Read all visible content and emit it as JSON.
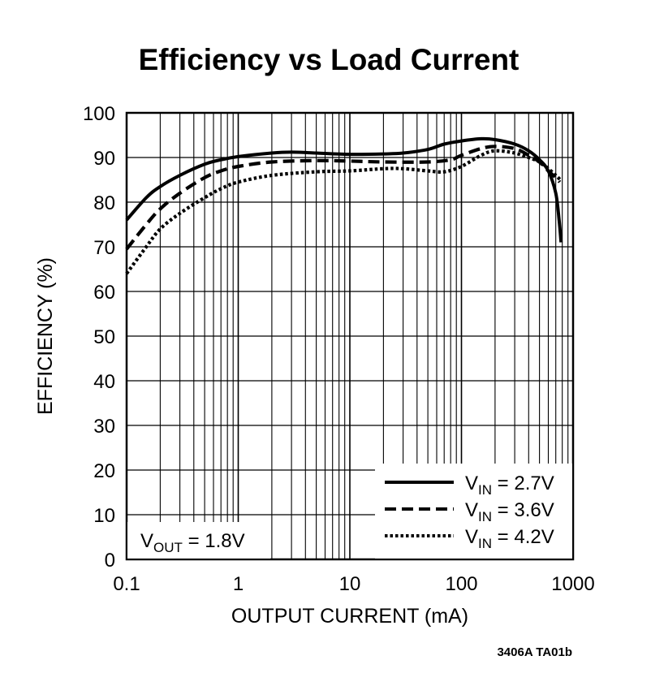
{
  "chart_data": {
    "type": "line",
    "title": "Efficiency vs Load Current",
    "xlabel": "OUTPUT CURRENT (mA)",
    "ylabel": "EFFICIENCY (%)",
    "xscale": "log",
    "xlim": [
      0.1,
      1000
    ],
    "ylim": [
      0,
      100
    ],
    "grid": true,
    "x_ticks": [
      {
        "value": 0.1,
        "label": "0.1"
      },
      {
        "value": 1,
        "label": "1"
      },
      {
        "value": 10,
        "label": "10"
      },
      {
        "value": 100,
        "label": "100"
      },
      {
        "value": 1000,
        "label": "1000"
      }
    ],
    "y_ticks": [
      {
        "value": 0,
        "label": "0"
      },
      {
        "value": 10,
        "label": "10"
      },
      {
        "value": 20,
        "label": "20"
      },
      {
        "value": 30,
        "label": "30"
      },
      {
        "value": 40,
        "label": "40"
      },
      {
        "value": 50,
        "label": "50"
      },
      {
        "value": 60,
        "label": "60"
      },
      {
        "value": 70,
        "label": "70"
      },
      {
        "value": 80,
        "label": "80"
      },
      {
        "value": 90,
        "label": "90"
      },
      {
        "value": 100,
        "label": "100"
      }
    ],
    "legend_position": "bottom-right",
    "series": [
      {
        "name": "VIN = 2.7V",
        "label_main": "V",
        "label_sub": "IN",
        "label_rest": " = 2.7V",
        "style": "solid",
        "points": [
          [
            0.1,
            76
          ],
          [
            0.15,
            81
          ],
          [
            0.2,
            83.5
          ],
          [
            0.3,
            86
          ],
          [
            0.5,
            88.5
          ],
          [
            0.7,
            89.5
          ],
          [
            1,
            90.2
          ],
          [
            2,
            91
          ],
          [
            3,
            91.2
          ],
          [
            5,
            91
          ],
          [
            10,
            90.7
          ],
          [
            20,
            90.8
          ],
          [
            30,
            91
          ],
          [
            50,
            91.8
          ],
          [
            70,
            93
          ],
          [
            100,
            93.7
          ],
          [
            150,
            94.2
          ],
          [
            200,
            94
          ],
          [
            300,
            93
          ],
          [
            400,
            91.5
          ],
          [
            500,
            89.5
          ],
          [
            600,
            87
          ],
          [
            700,
            82
          ],
          [
            750,
            76
          ],
          [
            780,
            71
          ]
        ]
      },
      {
        "name": "VIN = 3.6V",
        "label_main": "V",
        "label_sub": "IN",
        "label_rest": " = 3.6V",
        "style": "dashed",
        "points": [
          [
            0.1,
            69.5
          ],
          [
            0.15,
            75
          ],
          [
            0.2,
            78.5
          ],
          [
            0.3,
            82
          ],
          [
            0.5,
            85.5
          ],
          [
            0.7,
            87
          ],
          [
            1,
            88
          ],
          [
            2,
            89
          ],
          [
            5,
            89.3
          ],
          [
            10,
            89.2
          ],
          [
            20,
            89
          ],
          [
            50,
            89
          ],
          [
            80,
            89.5
          ],
          [
            100,
            90.5
          ],
          [
            150,
            92
          ],
          [
            200,
            92.5
          ],
          [
            300,
            92
          ],
          [
            400,
            90.5
          ],
          [
            500,
            89
          ],
          [
            600,
            87
          ],
          [
            700,
            85.5
          ],
          [
            760,
            84.5
          ]
        ]
      },
      {
        "name": "VIN = 4.2V",
        "label_main": "V",
        "label_sub": "IN",
        "label_rest": " = 4.2V",
        "style": "dotted",
        "points": [
          [
            0.1,
            64
          ],
          [
            0.15,
            70
          ],
          [
            0.2,
            74
          ],
          [
            0.3,
            77.5
          ],
          [
            0.5,
            81
          ],
          [
            0.7,
            83
          ],
          [
            1,
            84.5
          ],
          [
            2,
            86
          ],
          [
            5,
            86.8
          ],
          [
            10,
            87
          ],
          [
            20,
            87.5
          ],
          [
            30,
            87.5
          ],
          [
            50,
            87
          ],
          [
            70,
            86.8
          ],
          [
            100,
            88
          ],
          [
            150,
            90.5
          ],
          [
            200,
            91.5
          ],
          [
            300,
            91
          ],
          [
            400,
            90
          ],
          [
            500,
            89
          ],
          [
            600,
            87.5
          ],
          [
            700,
            86
          ],
          [
            770,
            85
          ]
        ]
      }
    ],
    "annotation": {
      "main": "V",
      "sub": "OUT",
      "rest": " = 1.8V"
    },
    "footnote": "3406A TA01b"
  }
}
